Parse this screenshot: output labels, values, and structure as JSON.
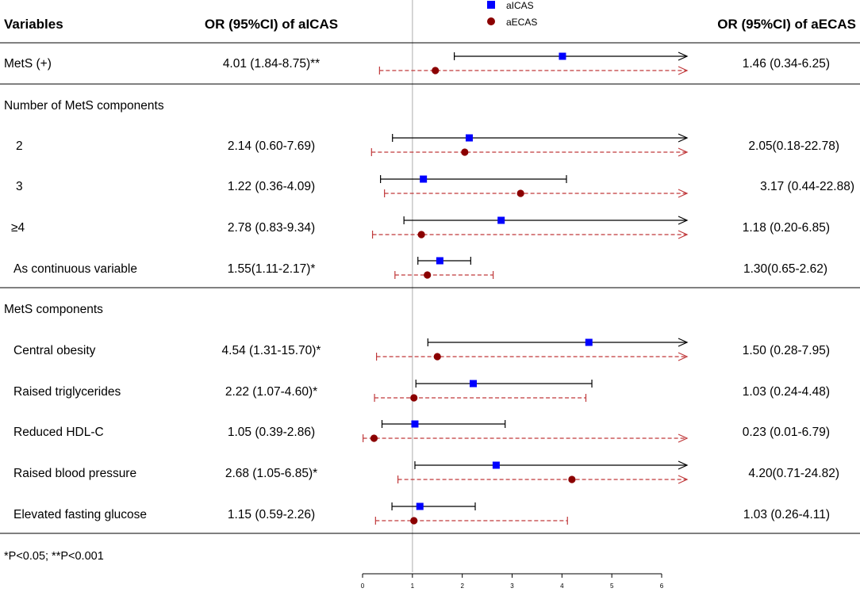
{
  "headers": {
    "variables": "Variables",
    "or_aicas": "OR (95%CI) of aICAS",
    "or_aecas": "OR (95%CI) of aECAS"
  },
  "legend": {
    "aicas": "aICAS",
    "aecas": "aECAS"
  },
  "section_labels": {
    "number_components": "Number of MetS components",
    "components": "MetS components"
  },
  "footnote": "*P<0.05;  **P<0.001",
  "colors": {
    "aicas": "#0000ff",
    "aecas": "#8b0000",
    "aicas_line": "#000000",
    "aecas_line": "#c0393b",
    "reference_line": "#c8c8c8",
    "rule": "#000000"
  },
  "chart_data": {
    "type": "forest",
    "xlim": [
      0,
      6
    ],
    "x_ticks": [
      "0",
      "1",
      "2",
      "3",
      "4",
      "5",
      "6"
    ],
    "reference_x": 1,
    "series": [
      {
        "name": "aICAS",
        "marker": "square",
        "line_style": "solid"
      },
      {
        "name": "aECAS",
        "marker": "circle",
        "line_style": "dashed"
      }
    ],
    "rows": [
      {
        "label": "MetS (+)",
        "or_aicas_text": "4.01 (1.84-8.75)**",
        "or_aecas_text": "1.46 (0.34-6.25)",
        "aicas": {
          "or": 4.01,
          "lo": 1.84,
          "hi": 8.75
        },
        "aecas": {
          "or": 1.46,
          "lo": 0.34,
          "hi": 6.25
        }
      },
      {
        "label": "2",
        "or_aicas_text": "2.14 (0.60-7.69)",
        "or_aecas_text": "2.05(0.18-22.78)",
        "aicas": {
          "or": 2.14,
          "lo": 0.6,
          "hi": 7.69
        },
        "aecas": {
          "or": 2.05,
          "lo": 0.18,
          "hi": 22.78
        }
      },
      {
        "label": "3",
        "or_aicas_text": "1.22 (0.36-4.09)",
        "or_aecas_text": "3.17 (0.44-22.88)",
        "aicas": {
          "or": 1.22,
          "lo": 0.36,
          "hi": 4.09
        },
        "aecas": {
          "or": 3.17,
          "lo": 0.44,
          "hi": 22.88
        }
      },
      {
        "label": "≥4",
        "or_aicas_text": "2.78 (0.83-9.34)",
        "or_aecas_text": "1.18 (0.20-6.85)",
        "aicas": {
          "or": 2.78,
          "lo": 0.83,
          "hi": 9.34
        },
        "aecas": {
          "or": 1.18,
          "lo": 0.2,
          "hi": 6.85
        }
      },
      {
        "label": "As continuous variable",
        "or_aicas_text": "1.55(1.11-2.17)*",
        "or_aecas_text": "1.30(0.65-2.62)",
        "aicas": {
          "or": 1.55,
          "lo": 1.11,
          "hi": 2.17
        },
        "aecas": {
          "or": 1.3,
          "lo": 0.65,
          "hi": 2.62
        }
      },
      {
        "label": "Central obesity",
        "or_aicas_text": "4.54 (1.31-15.70)*",
        "or_aecas_text": "1.50 (0.28-7.95)",
        "aicas": {
          "or": 4.54,
          "lo": 1.31,
          "hi": 15.7
        },
        "aecas": {
          "or": 1.5,
          "lo": 0.28,
          "hi": 7.95
        }
      },
      {
        "label": "Raised triglycerides",
        "or_aicas_text": "2.22 (1.07-4.60)*",
        "or_aecas_text": "1.03 (0.24-4.48)",
        "aicas": {
          "or": 2.22,
          "lo": 1.07,
          "hi": 4.6
        },
        "aecas": {
          "or": 1.03,
          "lo": 0.24,
          "hi": 4.48
        }
      },
      {
        "label": "Reduced HDL-C",
        "or_aicas_text": "1.05 (0.39-2.86)",
        "or_aecas_text": "0.23 (0.01-6.79)",
        "aicas": {
          "or": 1.05,
          "lo": 0.39,
          "hi": 2.86
        },
        "aecas": {
          "or": 0.23,
          "lo": 0.01,
          "hi": 6.79
        }
      },
      {
        "label": "Raised blood pressure",
        "or_aicas_text": "2.68 (1.05-6.85)*",
        "or_aecas_text": "4.20(0.71-24.82)",
        "aicas": {
          "or": 2.68,
          "lo": 1.05,
          "hi": 6.85
        },
        "aecas": {
          "or": 4.2,
          "lo": 0.71,
          "hi": 24.82
        }
      },
      {
        "label": "Elevated fasting glucose",
        "or_aicas_text": "1.15 (0.59-2.26)",
        "or_aecas_text": "1.03 (0.26-4.11)",
        "aicas": {
          "or": 1.15,
          "lo": 0.59,
          "hi": 2.26
        },
        "aecas": {
          "or": 1.03,
          "lo": 0.26,
          "hi": 4.11
        }
      }
    ]
  }
}
